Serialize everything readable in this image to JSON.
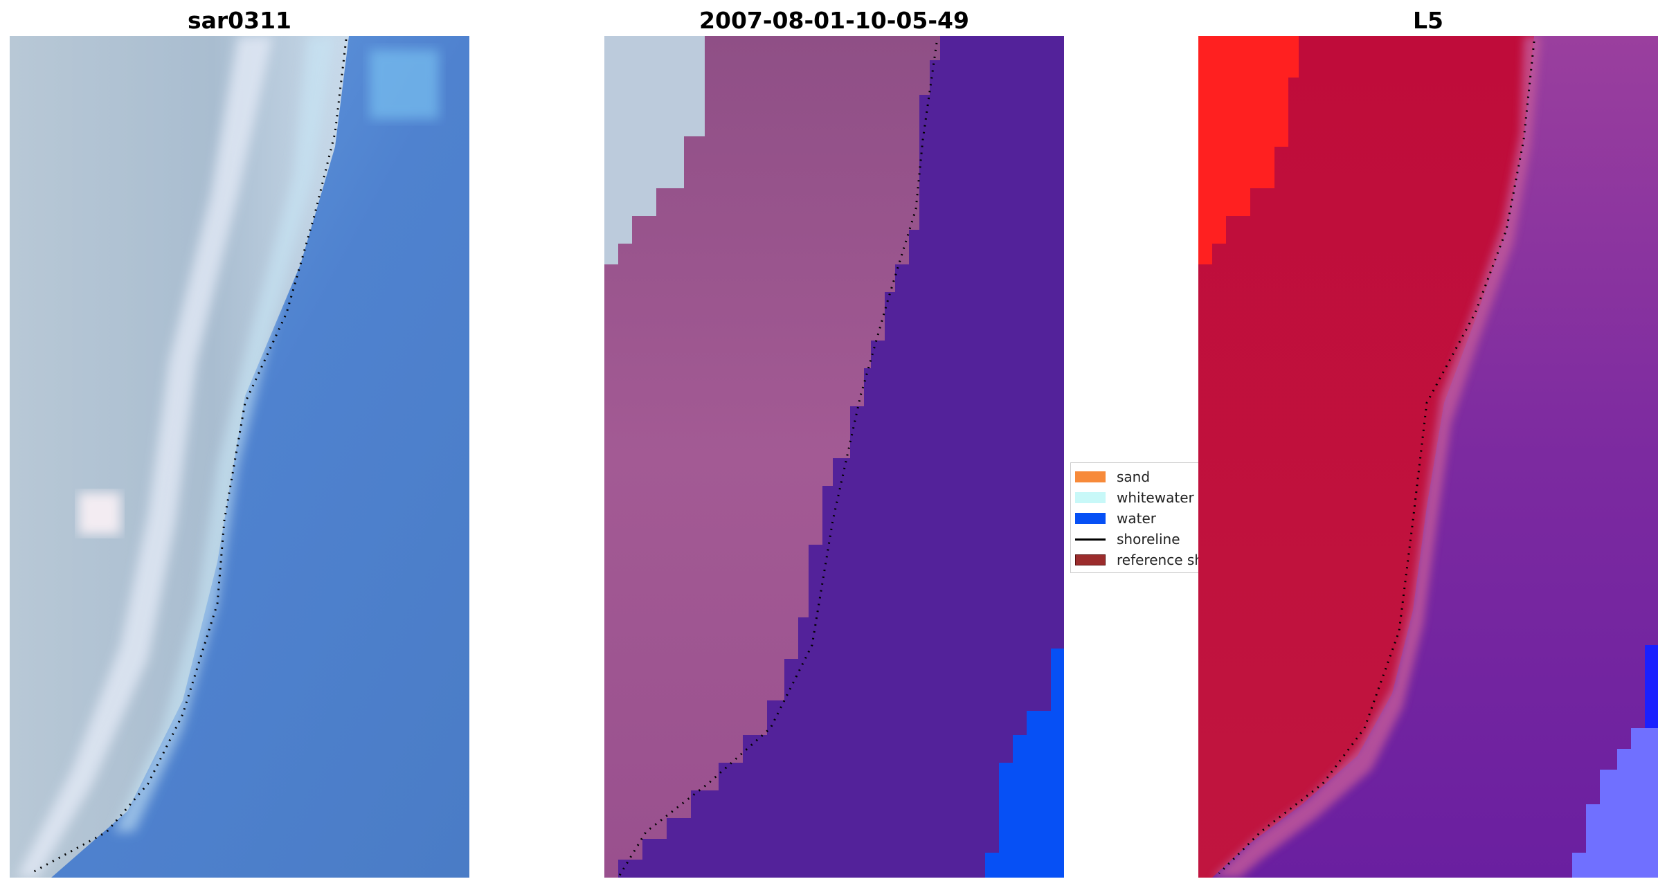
{
  "panels": [
    {
      "title": "sar0311"
    },
    {
      "title": "2007-08-01-10-05-49"
    },
    {
      "title": "L5"
    }
  ],
  "legend": {
    "items": [
      {
        "label": "sand",
        "color": "#f78a3a",
        "kind": "patch"
      },
      {
        "label": "whitewater",
        "color": "#c8f8f8",
        "kind": "patch"
      },
      {
        "label": "water",
        "color": "#0650f5",
        "kind": "patch"
      },
      {
        "label": "shoreline",
        "color": "#000000",
        "kind": "line"
      },
      {
        "label": "reference shoreline",
        "color": "#9b2c2c",
        "kind": "patch"
      }
    ]
  },
  "colors": {
    "land_rgb": "#b4c3d0",
    "ocean_rgb": "#5a8dd6",
    "classified_sand": "#9e4f8c",
    "classified_whitewater": "#bccbdc",
    "classified_water": "#53229a",
    "classified_water_bright": "#0650f5",
    "index_high": "#c30f3a",
    "index_max": "#ff2020",
    "index_low": "#7d2aa0",
    "index_water": "#7070ff"
  }
}
